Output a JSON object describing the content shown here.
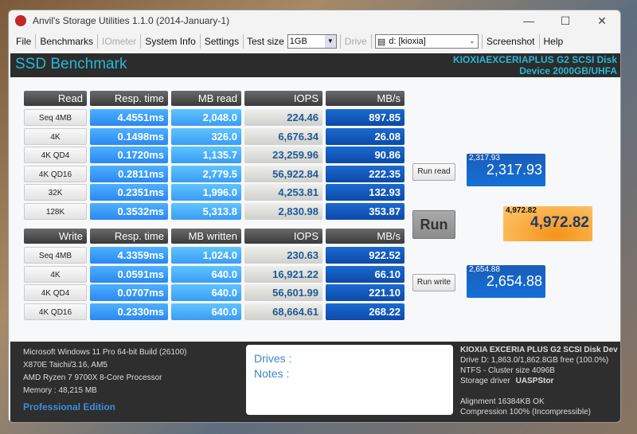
{
  "window": {
    "title": "Anvil's Storage Utilities 1.1.0 (2014-January-1)",
    "minimize": "—",
    "maximize": "☐",
    "close": "✕"
  },
  "menu": {
    "file": "File",
    "benchmarks": "Benchmarks",
    "iometer": "IOmeter",
    "system_info": "System Info",
    "settings": "Settings",
    "test_size_label": "Test size",
    "test_size_value": "1GB",
    "drive_label": "Drive",
    "drive_value": "d: [kioxia]",
    "screenshot": "Screenshot",
    "help": "Help"
  },
  "header": {
    "title": "SSD Benchmark",
    "device_line1": "KIOXIAEXCERIAPLUS G2 SCSI Disk",
    "device_line2": "Device 2000GB/UHFA"
  },
  "read": {
    "headers": [
      "Read",
      "Resp. time",
      "MB read",
      "IOPS",
      "MB/s"
    ],
    "rows": [
      [
        "Seq 4MB",
        "4.4551ms",
        "2,048.0",
        "224.46",
        "897.85"
      ],
      [
        "4K",
        "0.1498ms",
        "326.0",
        "6,676.34",
        "26.08"
      ],
      [
        "4K QD4",
        "0.1720ms",
        "1,135.7",
        "23,259.96",
        "90.86"
      ],
      [
        "4K QD16",
        "0.2811ms",
        "2,779.5",
        "56,922.84",
        "222.35"
      ],
      [
        "32K",
        "0.2351ms",
        "1,996.0",
        "4,253.81",
        "132.93"
      ],
      [
        "128K",
        "0.3532ms",
        "5,313.8",
        "2,830.98",
        "353.87"
      ]
    ]
  },
  "write": {
    "headers": [
      "Write",
      "Resp. time",
      "MB written",
      "IOPS",
      "MB/s"
    ],
    "rows": [
      [
        "Seq 4MB",
        "4.3359ms",
        "1,024.0",
        "230.63",
        "922.52"
      ],
      [
        "4K",
        "0.0591ms",
        "640.0",
        "16,921.22",
        "66.10"
      ],
      [
        "4K QD4",
        "0.0707ms",
        "640.0",
        "56,601.99",
        "221.10"
      ],
      [
        "4K QD16",
        "0.2330ms",
        "640.0",
        "68,664.61",
        "268.22"
      ]
    ]
  },
  "scores": {
    "run_read": "Run read",
    "run": "Run",
    "run_write": "Run write",
    "read_small": "2,317.93",
    "read": "2,317.93",
    "total_small": "4,972.82",
    "total": "4,972.82",
    "write_small": "2,654.88",
    "write": "2,654.88"
  },
  "footer": {
    "os": "Microsoft Windows 11 Pro 64-bit Build (26100)",
    "board": "X870E Taichi/3.16, AM5",
    "cpu": "AMD Ryzen 7 9700X 8-Core Processor",
    "memory": "Memory : 48,215 MB",
    "edition": "Professional Edition",
    "drives_label": "Drives :",
    "notes_label": "Notes :",
    "disk": "KIOXIA EXCERIA PLUS G2 SCSI Disk Dev",
    "drive_free": "Drive D: 1,863.0/1,862.8GB free (100.0%)",
    "fs": "NTFS - Cluster size 4096B",
    "driver_label": "Storage driver",
    "driver": "UASPStor",
    "alignment": "Alignment 16384KB OK",
    "compression": "Compression 100% (Incompressible)"
  }
}
